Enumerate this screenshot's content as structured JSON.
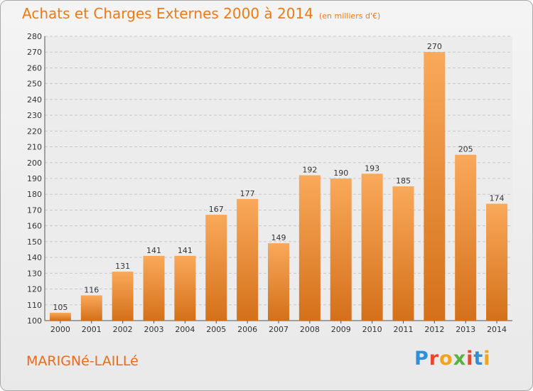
{
  "chart_data": {
    "type": "bar",
    "title": "Achats et Charges Externes 2000 à 2014",
    "subtitle": "(en milliers d'€)",
    "categories": [
      "2000",
      "2001",
      "2002",
      "2003",
      "2004",
      "2005",
      "2006",
      "2007",
      "2008",
      "2009",
      "2010",
      "2011",
      "2012",
      "2013",
      "2014"
    ],
    "values": [
      105,
      116,
      131,
      141,
      141,
      167,
      177,
      149,
      192,
      190,
      193,
      185,
      270,
      205,
      174
    ],
    "ylim": [
      100,
      280
    ],
    "ytick_step": 10,
    "grid": true,
    "legend": "none",
    "bar_color_top": "#f9a95a",
    "bar_color_bottom": "#d4701a",
    "grid_color": "#c8c8c8"
  },
  "footer": {
    "commune": "MARIGNé-LAILLé",
    "logo_letters": [
      "P",
      "r",
      "o",
      "x",
      "i",
      "t",
      "i"
    ]
  }
}
